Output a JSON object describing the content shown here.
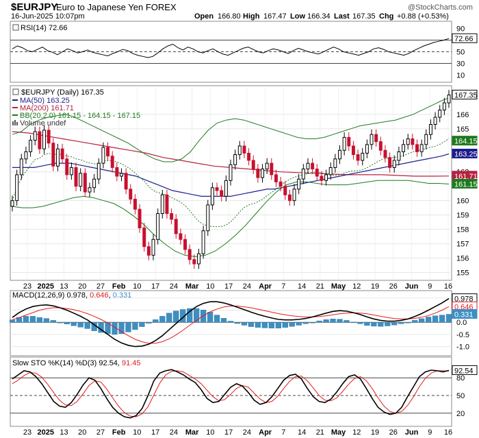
{
  "header": {
    "symbol": "$EURJPY",
    "name": "Euro to Japanese Yen FOREX",
    "watermark": "@StockCharts.com",
    "date": "16-Jun-2025 10:07pm",
    "ohlc": {
      "open_label": "Open",
      "open": "166.80",
      "high_label": "High",
      "high": "167.47",
      "low_label": "Low",
      "low": "166.34",
      "last_label": "Last",
      "last": "167.35",
      "chg_label": "Chg",
      "chg": "+0.88 (+0.53%)"
    }
  },
  "x_axis": {
    "ticks": [
      "23",
      "2025",
      "13",
      "20",
      "27",
      "Feb",
      "10",
      "17",
      "24",
      "Mar",
      "10",
      "17",
      "24",
      "Apr",
      "7",
      "14",
      "21",
      "May",
      "12",
      "19",
      "26",
      "Jun",
      "9",
      "16"
    ],
    "bold_ticks": [
      "2025",
      "Feb",
      "Mar",
      "Apr",
      "May",
      "Jun"
    ]
  },
  "colors": {
    "up": "#000000",
    "down": "#c8102e",
    "ma50": "#1c1c8c",
    "ma200": "#b5213f",
    "bb": "#1f7a1f",
    "rsi": "#000000",
    "macd": "#000000",
    "signal": "#e31a1c",
    "hist": "#3d8fc2",
    "stoK": "#000000",
    "stoD": "#e31a1c",
    "flag_green": "#1f7a1f"
  },
  "chart_data": [
    {
      "type": "line",
      "panel": "rsi",
      "title": "RSI(14) 72.66",
      "series": [
        {
          "name": "RSI(14)",
          "last": "72.66",
          "values": [
            55,
            60,
            57,
            52,
            50,
            54,
            58,
            52,
            49,
            45,
            50,
            55,
            52,
            48,
            50,
            53,
            49,
            47,
            45,
            43,
            47,
            50,
            54,
            52,
            47,
            44,
            42,
            40,
            42,
            48,
            55,
            60,
            63,
            57,
            53,
            58,
            55,
            50,
            48,
            52,
            55,
            50,
            46,
            44,
            48,
            52,
            56,
            58,
            54,
            50,
            48,
            52,
            55,
            53,
            50,
            47,
            52,
            56,
            53,
            50,
            48,
            46,
            50,
            54,
            58,
            55,
            50,
            48,
            46,
            44,
            47,
            50,
            55,
            57,
            54,
            50,
            48,
            46,
            44,
            47,
            52,
            56,
            60,
            63,
            66,
            68,
            70,
            72.66
          ]
        }
      ],
      "ylim": [
        0,
        100
      ],
      "ticks": [
        90,
        70,
        50,
        30,
        10
      ],
      "ref_lines": [
        70,
        50,
        30
      ],
      "last_label": "72.66"
    },
    {
      "type": "candlestick",
      "panel": "price",
      "title": "$EURJPY (Daily) 167.35",
      "legend": [
        {
          "label": "MA(50) 163.25"
        },
        {
          "label": "MA(200) 161.71"
        },
        {
          "label": "BB(20,2.0) 161.15 - 164.15 - 167.15"
        },
        {
          "label": "Volume undef"
        }
      ],
      "ylim": [
        154.5,
        167.9
      ],
      "ticks": [
        155,
        156,
        157,
        158,
        159,
        160,
        162,
        165,
        166
      ],
      "close": [
        160.0,
        161.8,
        162.9,
        163.4,
        164.2,
        164.8,
        163.6,
        164.9,
        164.0,
        162.4,
        163.6,
        162.9,
        161.8,
        162.3,
        161.0,
        161.9,
        160.6,
        160.9,
        161.5,
        162.6,
        163.7,
        163.1,
        162.3,
        161.7,
        161.9,
        160.8,
        160.1,
        159.4,
        158.1,
        156.8,
        156.2,
        157.3,
        159.1,
        160.4,
        159.1,
        158.7,
        157.7,
        157.3,
        156.6,
        155.9,
        155.6,
        156.3,
        157.9,
        159.7,
        160.9,
        160.7,
        160.3,
        161.4,
        162.5,
        163.2,
        163.8,
        163.3,
        162.8,
        162.2,
        161.6,
        162.2,
        162.6,
        161.8,
        161.3,
        161.0,
        160.4,
        160.0,
        160.8,
        161.5,
        162.2,
        162.6,
        162.2,
        161.7,
        161.4,
        161.8,
        162.3,
        162.9,
        163.5,
        164.4,
        163.8,
        163.2,
        162.8,
        163.3,
        163.9,
        164.6,
        164.1,
        163.5,
        163.0,
        162.3,
        162.8,
        163.4,
        163.9,
        164.3,
        163.9,
        163.4,
        163.9,
        164.6,
        165.3,
        165.8,
        166.3,
        166.8,
        167.35
      ],
      "ma50": [
        162.3,
        162.3,
        162.3,
        162.3,
        162.4,
        162.5,
        162.6,
        162.6,
        162.6,
        162.5,
        162.4,
        162.3,
        162.2,
        162.1,
        162.0,
        161.9,
        161.8,
        161.7,
        161.5,
        161.3,
        161.1,
        160.9,
        160.7,
        160.6,
        160.5,
        160.4,
        160.3,
        160.3,
        160.3,
        160.3,
        160.3,
        160.4,
        160.5,
        160.6,
        160.7,
        160.8,
        160.8,
        160.9,
        161.0,
        161.1,
        161.2,
        161.3,
        161.4,
        161.5,
        161.6,
        161.7,
        161.8,
        161.9,
        162.0,
        162.1,
        162.2,
        162.3,
        162.4,
        162.5,
        162.6,
        162.7,
        162.8,
        162.9,
        163.0,
        163.1,
        163.25
      ],
      "ma200": [
        164.8,
        164.7,
        164.5,
        164.3,
        164.1,
        163.9,
        163.7,
        163.5,
        163.3,
        163.0,
        162.8,
        162.6,
        162.4,
        162.3,
        162.2,
        162.1,
        162.0,
        161.95,
        161.9,
        161.85,
        161.8,
        161.8,
        161.8,
        161.75,
        161.7,
        161.7,
        161.71
      ],
      "bb_upper": [
        164.6,
        164.8,
        165.3,
        165.6,
        165.8,
        165.9,
        166.0,
        165.8,
        165.5,
        165.2,
        164.9,
        164.6,
        164.3,
        164.0,
        163.6,
        163.2,
        162.9,
        162.7,
        162.7,
        162.9,
        163.4,
        164.2,
        164.9,
        165.4,
        165.6,
        165.7,
        165.6,
        165.4,
        165.2,
        165.0,
        164.8,
        164.6,
        164.4,
        164.3,
        164.3,
        164.4,
        164.6,
        164.8,
        165.0,
        165.2,
        165.3,
        165.4,
        165.5,
        165.6,
        165.8,
        166.0,
        166.3,
        166.6,
        166.9,
        167.15
      ],
      "bb_lower": [
        159.6,
        159.5,
        159.5,
        159.6,
        159.8,
        160.0,
        160.2,
        160.3,
        160.2,
        160.0,
        159.8,
        159.4,
        158.9,
        158.3,
        157.6,
        157.0,
        156.5,
        156.2,
        156.1,
        156.2,
        156.5,
        157.0,
        157.6,
        158.3,
        159.1,
        159.9,
        160.6,
        161.1,
        161.3,
        161.3,
        161.2,
        161.1,
        161.1,
        161.1,
        161.2,
        161.3,
        161.4,
        161.4,
        161.4,
        161.4,
        161.3,
        161.2,
        161.2,
        161.15
      ],
      "last_labels": [
        "167.35",
        "164.15",
        "163.25",
        "161.71",
        "161.15"
      ]
    },
    {
      "type": "line",
      "panel": "macd",
      "title": "MACD(12,26,9) 0.978, 0.646, 0.331",
      "title_parts": {
        "name": "MACD(12,26,9)",
        "macd": "0.978",
        "signal": "0.646",
        "hist": "0.331"
      },
      "series": [
        {
          "name": "MACD",
          "values": [
            0.2,
            0.4,
            0.55,
            0.65,
            0.7,
            0.72,
            0.68,
            0.6,
            0.5,
            0.38,
            0.25,
            0.1,
            -0.1,
            -0.3,
            -0.5,
            -0.7,
            -0.85,
            -0.95,
            -1.0,
            -0.98,
            -0.9,
            -0.75,
            -0.55,
            -0.3,
            -0.05,
            0.2,
            0.45,
            0.65,
            0.78,
            0.85,
            0.85,
            0.8,
            0.72,
            0.62,
            0.52,
            0.42,
            0.33,
            0.25,
            0.18,
            0.12,
            0.1,
            0.1,
            0.12,
            0.16,
            0.22,
            0.3,
            0.38,
            0.45,
            0.48,
            0.46,
            0.4,
            0.32,
            0.22,
            0.14,
            0.08,
            0.05,
            0.05,
            0.08,
            0.14,
            0.24,
            0.36,
            0.5,
            0.65,
            0.8,
            0.978
          ]
        },
        {
          "name": "Signal",
          "values": [
            0.1,
            0.2,
            0.3,
            0.4,
            0.5,
            0.56,
            0.6,
            0.6,
            0.57,
            0.52,
            0.45,
            0.36,
            0.25,
            0.12,
            -0.03,
            -0.2,
            -0.38,
            -0.55,
            -0.7,
            -0.8,
            -0.86,
            -0.86,
            -0.8,
            -0.68,
            -0.52,
            -0.33,
            -0.12,
            0.08,
            0.27,
            0.43,
            0.55,
            0.63,
            0.67,
            0.67,
            0.64,
            0.6,
            0.54,
            0.48,
            0.42,
            0.36,
            0.31,
            0.27,
            0.24,
            0.22,
            0.22,
            0.24,
            0.27,
            0.31,
            0.35,
            0.38,
            0.39,
            0.38,
            0.35,
            0.3,
            0.25,
            0.2,
            0.16,
            0.14,
            0.14,
            0.16,
            0.21,
            0.28,
            0.38,
            0.5,
            0.646
          ]
        }
      ],
      "hist_last": 0.331,
      "ylim": [
        -1.35,
        1.25
      ],
      "ticks": [
        "1.0",
        "0.5",
        "0.0",
        "-0.5",
        "-1.0"
      ],
      "last_labels": [
        "0.978",
        "0.646",
        "0.331"
      ]
    },
    {
      "type": "line",
      "panel": "sto",
      "title": "Slow STO %K(14) %D(3) 92.54, 91.45",
      "title_parts": {
        "name": "Slow STO %K(14) %D(3)",
        "k": "92.54",
        "d": "91.45"
      },
      "series": [
        {
          "name": "%K",
          "values": [
            78,
            85,
            92,
            90,
            82,
            70,
            55,
            40,
            32,
            30,
            38,
            52,
            68,
            80,
            76,
            62,
            45,
            30,
            20,
            14,
            12,
            16,
            28,
            50,
            75,
            88,
            92,
            94,
            90,
            85,
            78,
            72,
            60,
            45,
            38,
            40,
            52,
            64,
            70,
            66,
            55,
            42,
            35,
            38,
            48,
            62,
            76,
            84,
            86,
            78,
            62,
            48,
            40,
            38,
            44,
            56,
            70,
            82,
            85,
            78,
            62,
            45,
            30,
            22,
            18,
            20,
            30,
            48,
            65,
            82,
            90,
            93,
            92,
            90,
            92.54
          ]
        },
        {
          "name": "%D",
          "values": [
            70,
            76,
            84,
            89,
            88,
            81,
            69,
            55,
            42,
            34,
            33,
            40,
            53,
            67,
            75,
            73,
            61,
            46,
            32,
            21,
            15,
            14,
            19,
            31,
            51,
            71,
            85,
            91,
            92,
            90,
            84,
            78,
            70,
            59,
            48,
            41,
            43,
            52,
            62,
            67,
            64,
            54,
            44,
            38,
            40,
            49,
            62,
            74,
            82,
            83,
            75,
            63,
            50,
            42,
            41,
            46,
            57,
            69,
            79,
            82,
            75,
            62,
            46,
            32,
            23,
            20,
            23,
            33,
            48,
            65,
            79,
            88,
            92,
            92,
            91.45
          ]
        }
      ],
      "ylim": [
        0,
        100
      ],
      "ticks": [
        80,
        50,
        20
      ],
      "ref_lines": [
        80,
        50,
        20
      ],
      "last_label": "92.54"
    }
  ]
}
